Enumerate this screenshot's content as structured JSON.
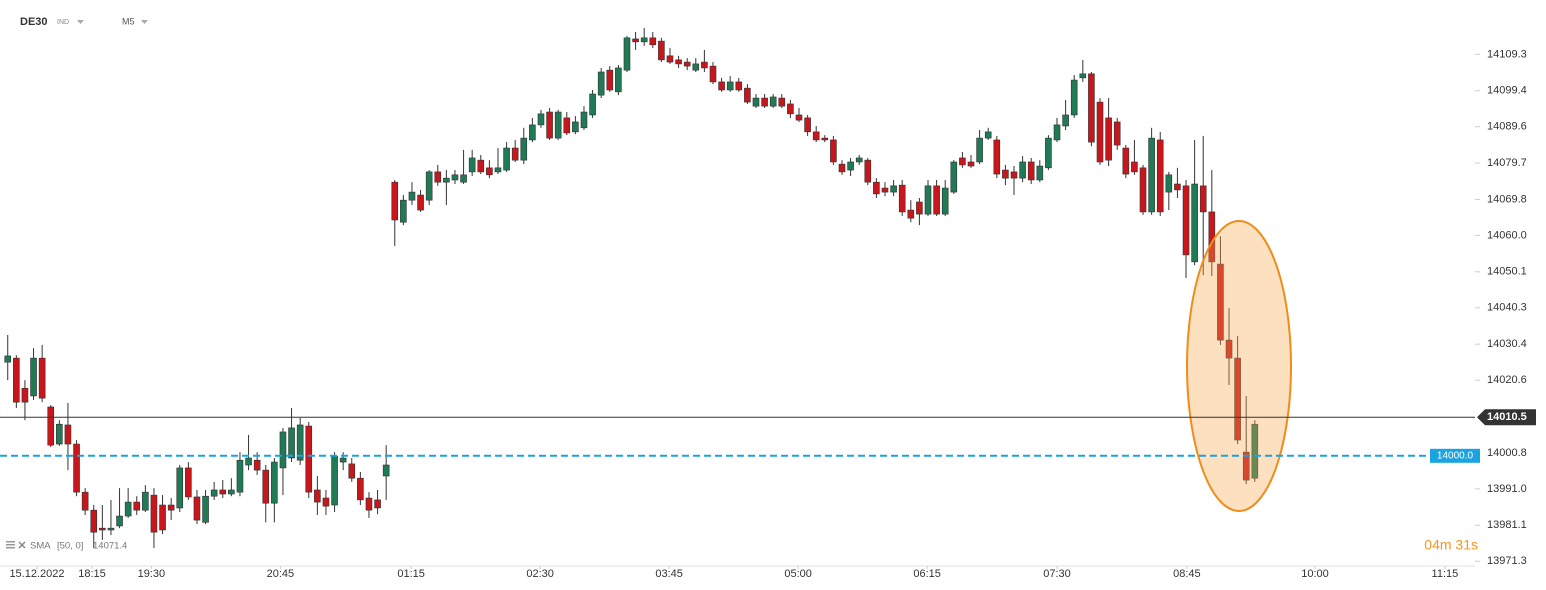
{
  "chart_data": {
    "type": "candlestick",
    "symbol": "DE30",
    "instrument_class": "IND",
    "interval": "M5",
    "indicator": {
      "name": "SMA",
      "params": "[50, 0]",
      "value": 14071.4
    },
    "timer": "04m 31s",
    "up_color": "#1f7a55",
    "down_color": "#c8161d",
    "ylim": [
      13970,
      14124.1
    ],
    "yticks": [
      14109.3,
      14099.4,
      14089.6,
      14079.7,
      14069.8,
      {
        "value": 14060,
        "label": "14060.0"
      },
      14050.1,
      14040.3,
      14030.4,
      14020.6,
      14000.8,
      {
        "value": 13991,
        "label": "13991.0"
      },
      13981.1,
      13971.3
    ],
    "xlim": [
      -0.9,
      170.6
    ],
    "xticks": [
      {
        "value": 3.4,
        "label": "15.12.2022"
      },
      {
        "value": 9.8,
        "label": "18:15"
      },
      {
        "value": 16.7,
        "label": "19:30"
      },
      {
        "value": 31.7,
        "label": "20:45"
      },
      {
        "value": 46.9,
        "label": "01:15"
      },
      {
        "value": 61.9,
        "label": "02:30"
      },
      {
        "value": 76.9,
        "label": "03:45"
      },
      {
        "value": 91.9,
        "label": "05:00"
      },
      {
        "value": 106.9,
        "label": "06:15"
      },
      {
        "value": 122,
        "label": "07:30"
      },
      {
        "value": 137.1,
        "label": "08:45"
      },
      {
        "value": 152,
        "label": "10:00"
      },
      {
        "value": 167.1,
        "label": "11:15"
      }
    ],
    "price_lines": [
      {
        "value": 14010.5,
        "color": "#333333",
        "style": "solid"
      },
      {
        "value": 14000,
        "label": "14000.0",
        "color": "#1aa3e0",
        "style": "dashed"
      }
    ],
    "ohlc": [
      [
        14025.5,
        14032.9,
        14020.6,
        14027.2
      ],
      [
        14026.6,
        14027.4,
        14013.0,
        14014.6
      ],
      [
        14018.4,
        14020.6,
        14009.7,
        14014.6
      ],
      [
        14016.3,
        14029.3,
        14015.2,
        14026.6
      ],
      [
        14026.6,
        14030.2,
        14014.6,
        14015.7
      ],
      [
        14013.3,
        14013.8,
        14002.4,
        14002.9
      ],
      [
        14003.2,
        14009.7,
        14002.7,
        14008.6
      ],
      [
        14008.4,
        14014.4,
        13996.1,
        14003.2
      ],
      [
        14003.2,
        14004.3,
        13989.0,
        13990.1
      ],
      [
        13990.1,
        13991.2,
        13983.9,
        13985.2
      ],
      [
        13985.2,
        13986.6,
        13974.9,
        13979.2
      ],
      [
        13980.3,
        13986.6,
        13977.1,
        13979.8
      ],
      [
        13979.8,
        13988.0,
        13978.4,
        13980.3
      ],
      [
        13980.9,
        13991.2,
        13980.3,
        13983.6
      ],
      [
        13983.6,
        13991.2,
        13983.1,
        13987.4
      ],
      [
        13987.4,
        13989.0,
        13983.9,
        13985.2
      ],
      [
        13985.2,
        13992.0,
        13984.7,
        13990.1
      ],
      [
        13989.3,
        13991.2,
        13974.9,
        13979.2
      ],
      [
        13986.6,
        13989.3,
        13978.7,
        13979.8
      ],
      [
        13986.6,
        13988.5,
        13982.5,
        13985.2
      ],
      [
        13985.8,
        13997.5,
        13984.7,
        13996.7
      ],
      [
        13996.7,
        13998.3,
        13988.0,
        13988.8
      ],
      [
        13988.8,
        13990.7,
        13981.4,
        13982.5
      ],
      [
        13981.9,
        13990.7,
        13981.4,
        13989.0
      ],
      [
        13989.0,
        13992.9,
        13988.0,
        13990.7
      ],
      [
        13990.7,
        13993.4,
        13988.5,
        13989.6
      ],
      [
        13989.6,
        13993.9,
        13989.0,
        13990.7
      ],
      [
        13990.1,
        14001.0,
        13989.0,
        13998.8
      ],
      [
        13997.5,
        14005.7,
        13996.1,
        13999.4
      ],
      [
        13998.8,
        14001.0,
        13994.8,
        13996.1
      ],
      [
        13996.1,
        13997.5,
        13981.9,
        13987.1
      ],
      [
        13987.1,
        13999.4,
        13981.9,
        13998.3
      ],
      [
        13996.7,
        14007.6,
        13989.3,
        14006.5
      ],
      [
        13999.4,
        14013.0,
        13998.3,
        14007.6
      ],
      [
        13998.8,
        14010.3,
        13997.5,
        14008.4
      ],
      [
        14008.1,
        14009.2,
        13988.5,
        13990.1
      ],
      [
        13990.7,
        13994.5,
        13983.9,
        13987.4
      ],
      [
        13988.5,
        13990.7,
        13983.9,
        13986.3
      ],
      [
        13986.6,
        14001.0,
        13984.7,
        13999.9
      ],
      [
        13998.3,
        14001.0,
        13996.1,
        13999.4
      ],
      [
        13997.8,
        13999.4,
        13992.9,
        13993.9
      ],
      [
        13993.9,
        13995.6,
        13986.6,
        13988.0
      ],
      [
        13988.5,
        13990.1,
        13983.1,
        13985.2
      ],
      [
        13988.0,
        13990.7,
        13984.1,
        13985.8
      ],
      [
        13994.5,
        14002.9,
        13988.0,
        13997.5
      ],
      [
        14074.5,
        14075.1,
        14057.1,
        14064.2
      ],
      [
        14063.6,
        14071.0,
        14062.8,
        14069.6
      ],
      [
        14069.6,
        14074.5,
        14068.3,
        14071.8
      ],
      [
        14071.0,
        14072.4,
        14066.4,
        14066.9
      ],
      [
        14069.6,
        14077.8,
        14068.3,
        14077.3
      ],
      [
        14077.3,
        14079.2,
        14073.5,
        14074.5
      ],
      [
        14074.5,
        14077.8,
        14068.3,
        14075.6
      ],
      [
        14075.1,
        14077.8,
        14074.0,
        14076.5
      ],
      [
        14074.5,
        14083.3,
        14074.0,
        14076.5
      ],
      [
        14077.3,
        14083.3,
        14076.2,
        14081.1
      ],
      [
        14080.5,
        14081.9,
        14076.7,
        14077.3
      ],
      [
        14078.4,
        14080.5,
        14075.6,
        14076.5
      ],
      [
        14077.3,
        14083.8,
        14076.7,
        14078.4
      ],
      [
        14077.8,
        14085.4,
        14077.3,
        14083.8
      ],
      [
        14083.8,
        14086.0,
        14080.0,
        14080.5
      ],
      [
        14080.5,
        14089.3,
        14079.4,
        14086.5
      ],
      [
        14086.0,
        14092.0,
        14085.4,
        14090.1
      ],
      [
        14090.1,
        14094.2,
        14089.3,
        14093.1
      ],
      [
        14093.6,
        14094.7,
        14086.0,
        14086.5
      ],
      [
        14086.5,
        14094.2,
        14086.0,
        14093.6
      ],
      [
        14092.0,
        14093.6,
        14087.3,
        14087.9
      ],
      [
        14088.2,
        14092.5,
        14087.6,
        14090.9
      ],
      [
        14089.3,
        14095.2,
        14088.7,
        14093.6
      ],
      [
        14092.8,
        14099.6,
        14092.0,
        14098.5
      ],
      [
        14098.2,
        14105.6,
        14097.4,
        14104.5
      ],
      [
        14105.0,
        14106.1,
        14099.1,
        14099.6
      ],
      [
        14099.1,
        14106.4,
        14098.2,
        14105.6
      ],
      [
        14105.0,
        14114.3,
        14104.5,
        14113.8
      ],
      [
        14113.5,
        14115.4,
        14110.5,
        14112.7
      ],
      [
        14112.7,
        14116.5,
        14111.6,
        14113.8
      ],
      [
        14113.8,
        14115.4,
        14111.0,
        14111.9
      ],
      [
        14112.9,
        14113.8,
        14107.2,
        14107.8
      ],
      [
        14108.9,
        14111.0,
        14106.7,
        14107.2
      ],
      [
        14107.8,
        14108.9,
        14105.6,
        14106.7
      ],
      [
        14107.2,
        14108.3,
        14105.0,
        14106.1
      ],
      [
        14105.0,
        14108.3,
        14104.5,
        14106.7
      ],
      [
        14107.2,
        14110.5,
        14104.5,
        14105.6
      ],
      [
        14106.1,
        14107.2,
        14101.2,
        14101.8
      ],
      [
        14101.8,
        14102.9,
        14099.1,
        14099.6
      ],
      [
        14099.6,
        14103.4,
        14099.1,
        14101.8
      ],
      [
        14101.8,
        14102.9,
        14099.1,
        14099.6
      ],
      [
        14100.1,
        14101.2,
        14095.8,
        14096.3
      ],
      [
        14095.2,
        14098.5,
        14094.7,
        14097.4
      ],
      [
        14097.4,
        14098.5,
        14094.7,
        14095.2
      ],
      [
        14095.2,
        14098.5,
        14094.7,
        14097.7
      ],
      [
        14097.4,
        14098.5,
        14094.7,
        14095.2
      ],
      [
        14095.8,
        14096.9,
        14092.0,
        14093.1
      ],
      [
        14092.8,
        14094.7,
        14090.9,
        14091.4
      ],
      [
        14092.0,
        14092.8,
        14087.1,
        14088.2
      ],
      [
        14088.2,
        14089.8,
        14085.4,
        14086.0
      ],
      [
        14086.5,
        14087.3,
        14085.4,
        14086.0
      ],
      [
        14086.0,
        14087.1,
        14079.2,
        14080.0
      ],
      [
        14079.4,
        14080.5,
        14076.5,
        14077.3
      ],
      [
        14077.8,
        14081.1,
        14076.2,
        14080.0
      ],
      [
        14080.0,
        14081.9,
        14079.2,
        14081.1
      ],
      [
        14080.5,
        14081.1,
        14073.7,
        14074.5
      ],
      [
        14074.5,
        14075.6,
        14070.2,
        14071.3
      ],
      [
        14072.9,
        14074.5,
        14070.7,
        14071.8
      ],
      [
        14071.8,
        14075.1,
        14070.7,
        14073.5
      ],
      [
        14073.7,
        14075.1,
        14065.3,
        14066.4
      ],
      [
        14066.9,
        14069.6,
        14063.6,
        14064.7
      ],
      [
        14069.1,
        14070.2,
        14062.8,
        14065.8
      ],
      [
        14065.8,
        14075.1,
        14065.3,
        14073.5
      ],
      [
        14073.5,
        14075.1,
        14065.3,
        14065.8
      ],
      [
        14065.8,
        14075.1,
        14065.3,
        14072.9
      ],
      [
        14071.8,
        14080.5,
        14071.3,
        14080.0
      ],
      [
        14081.1,
        14082.7,
        14078.4,
        14079.2
      ],
      [
        14080.0,
        14081.9,
        14078.4,
        14078.9
      ],
      [
        14080.0,
        14088.7,
        14079.4,
        14086.5
      ],
      [
        14086.5,
        14089.3,
        14086.0,
        14088.2
      ],
      [
        14086.0,
        14087.1,
        14075.6,
        14076.7
      ],
      [
        14077.8,
        14079.2,
        14073.7,
        14075.6
      ],
      [
        14077.3,
        14078.9,
        14071.0,
        14075.6
      ],
      [
        14075.6,
        14081.6,
        14074.5,
        14080.0
      ],
      [
        14080.0,
        14081.1,
        14074.0,
        14075.1
      ],
      [
        14075.1,
        14080.5,
        14074.5,
        14078.9
      ],
      [
        14078.4,
        14087.3,
        14077.8,
        14086.5
      ],
      [
        14086.0,
        14092.0,
        14085.4,
        14090.1
      ],
      [
        14089.8,
        14096.9,
        14088.7,
        14092.8
      ],
      [
        14092.8,
        14103.7,
        14092.0,
        14102.3
      ],
      [
        14102.9,
        14107.8,
        14101.8,
        14104.0
      ],
      [
        14104.0,
        14104.5,
        14084.3,
        14085.4
      ],
      [
        14096.3,
        14097.4,
        14079.2,
        14080.0
      ],
      [
        14092.0,
        14097.4,
        14078.9,
        14080.5
      ],
      [
        14090.9,
        14092.0,
        14083.3,
        14084.6
      ],
      [
        14083.8,
        14084.6,
        14075.6,
        14076.7
      ],
      [
        14080.0,
        14086.0,
        14076.5,
        14077.3
      ],
      [
        14078.4,
        14079.2,
        14065.6,
        14066.4
      ],
      [
        14066.4,
        14089.3,
        14065.6,
        14086.5
      ],
      [
        14086.0,
        14088.2,
        14065.3,
        14066.4
      ],
      [
        14071.8,
        14077.3,
        14066.9,
        14076.5
      ],
      [
        14074.0,
        14078.4,
        14070.2,
        14072.4
      ],
      [
        14073.5,
        14075.1,
        14048.4,
        14054.7
      ],
      [
        14052.8,
        14086.0,
        14051.9,
        14074.0
      ],
      [
        14073.5,
        14087.1,
        14049.2,
        14066.4
      ],
      [
        14066.4,
        14077.8,
        14049.0,
        14052.8
      ],
      [
        14052.2,
        14059.8,
        14030.2,
        14031.5
      ],
      [
        14031.5,
        14040.2,
        14019.3,
        14026.6
      ],
      [
        14026.6,
        14032.6,
        14003.2,
        14004.3
      ],
      [
        14001.0,
        14016.3,
        13992.3,
        13993.4
      ],
      [
        13993.9,
        14009.7,
        13992.9,
        14008.6
      ]
    ]
  }
}
